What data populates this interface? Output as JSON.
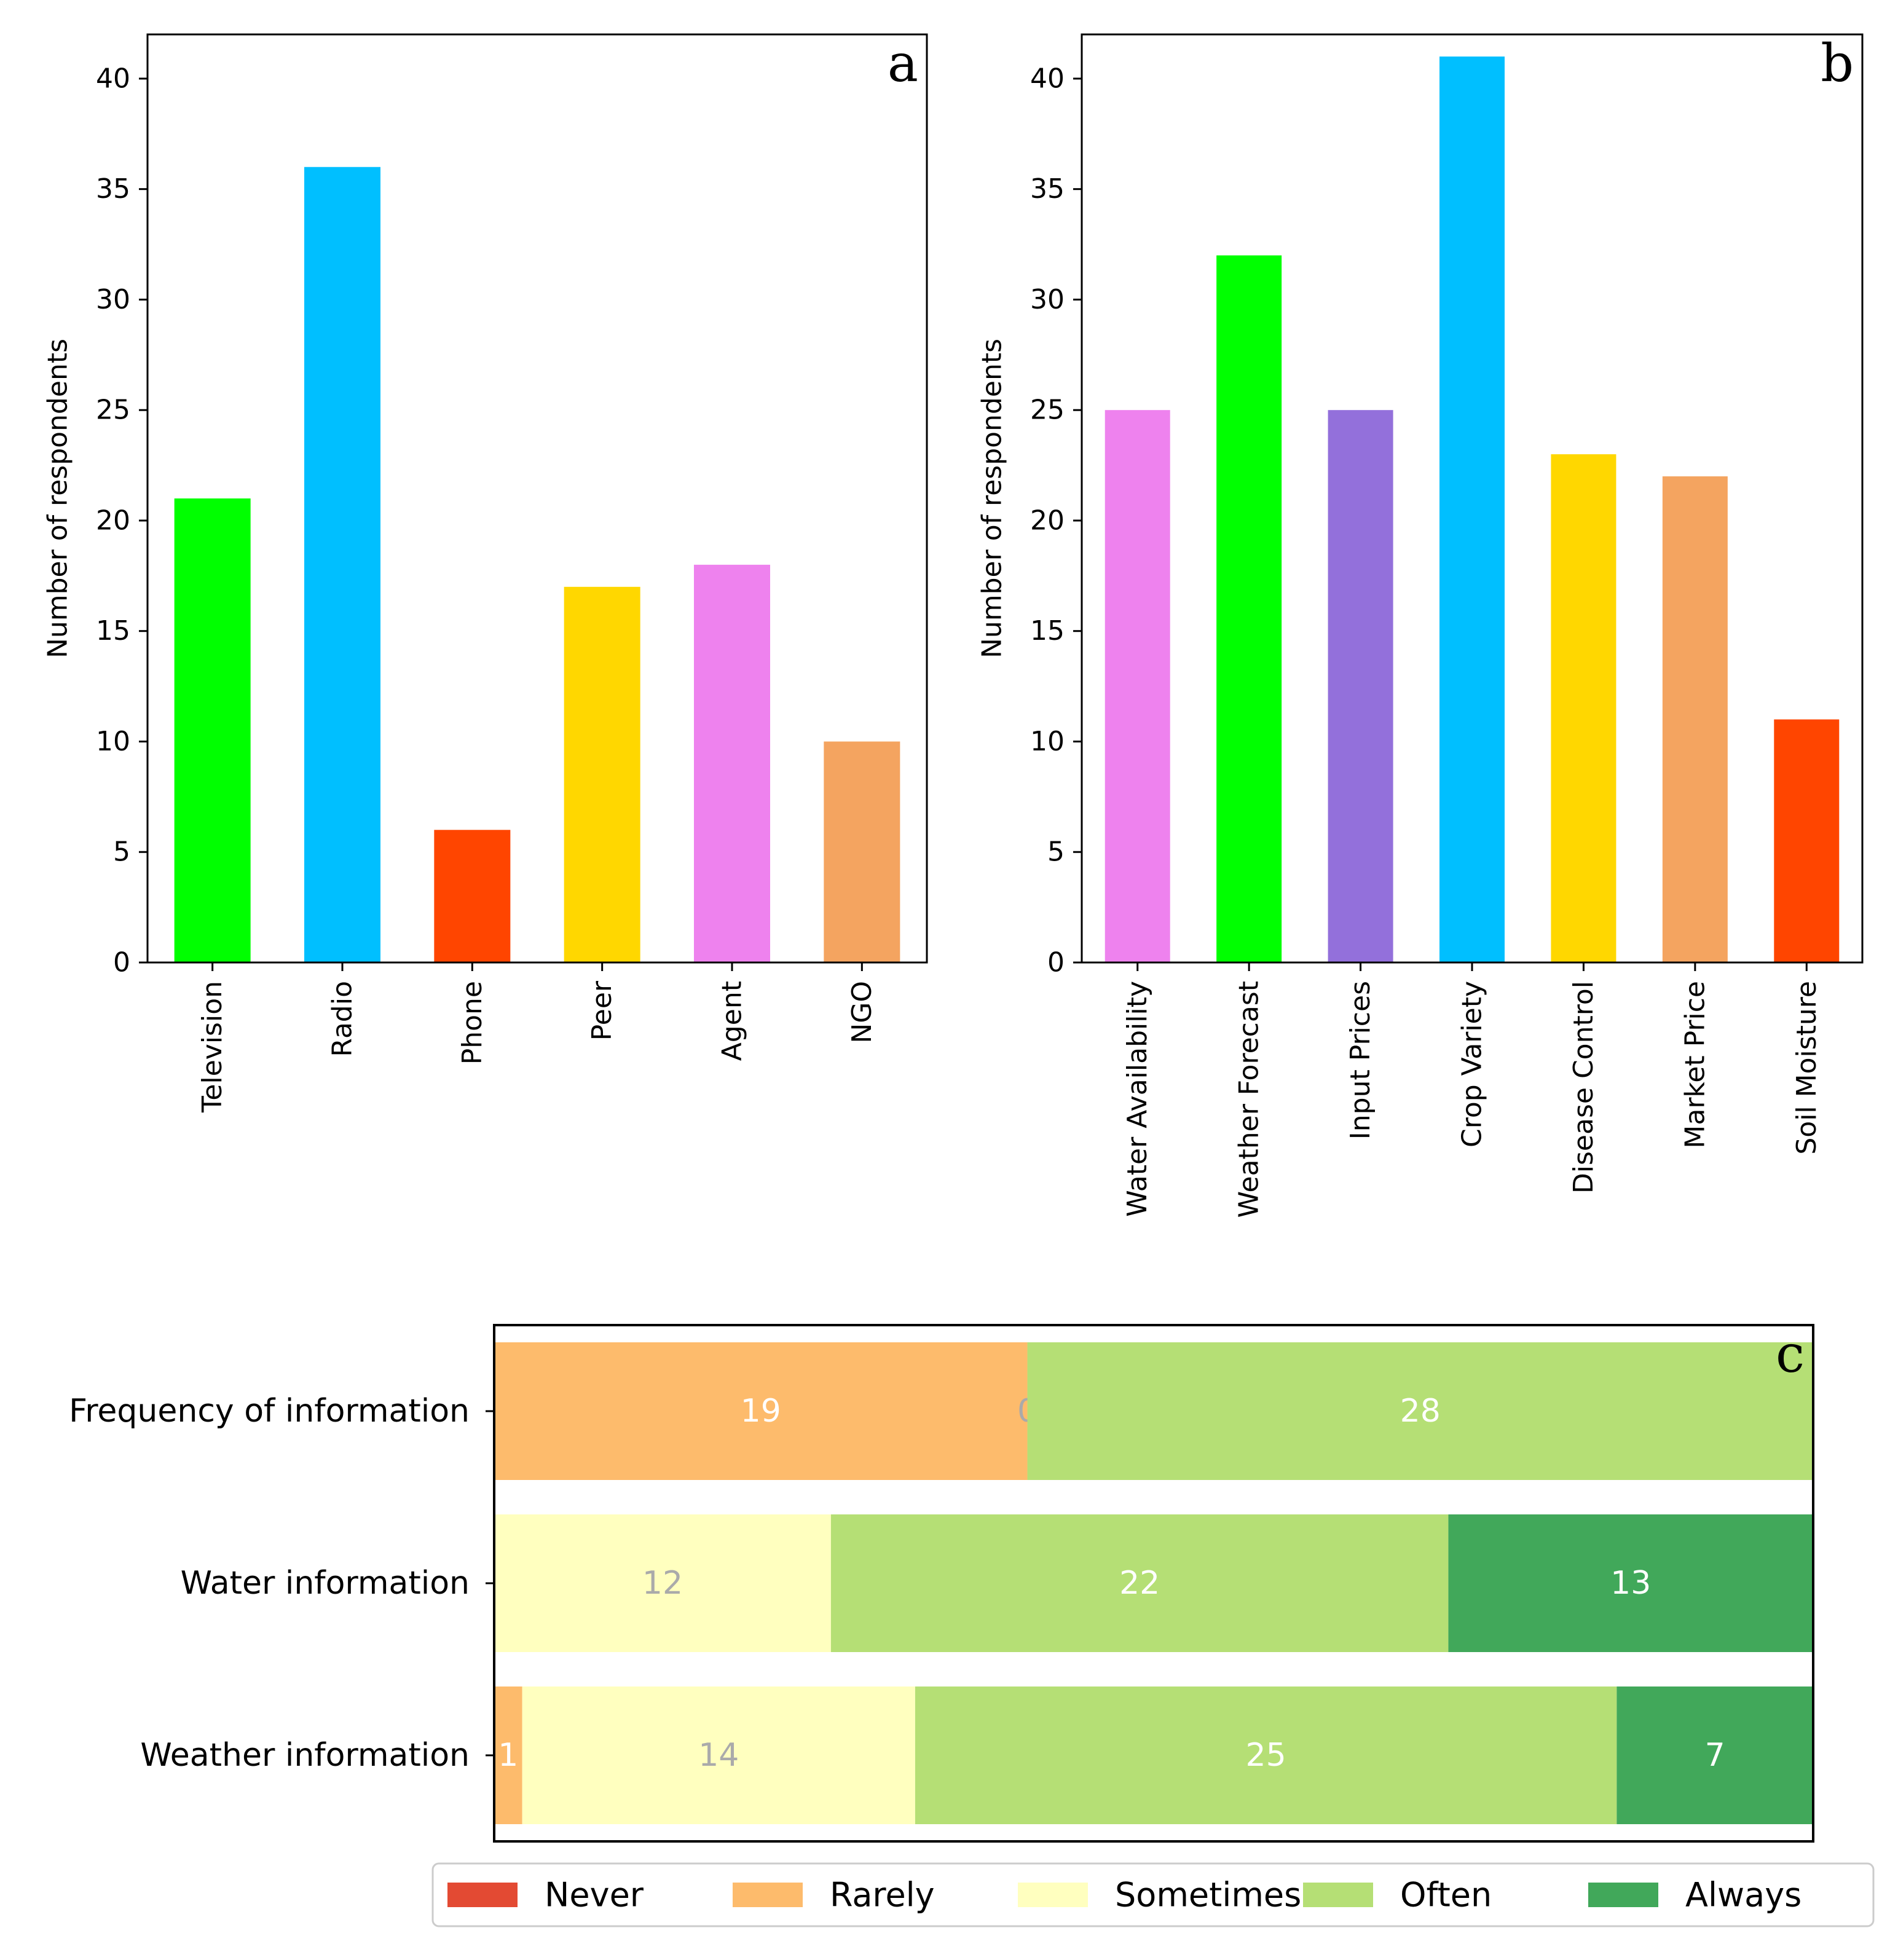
{
  "chart_data": [
    {
      "type": "bar",
      "panel_label": "a",
      "ylabel": "Number of respondents",
      "xlabel": "",
      "ylim": [
        0,
        42
      ],
      "yticks": [
        0,
        5,
        10,
        15,
        20,
        25,
        30,
        35,
        40
      ],
      "grid": false,
      "categories": [
        "Television",
        "Radio",
        "Phone",
        "Peer",
        "Agent",
        "NGO"
      ],
      "values": [
        21,
        36,
        6,
        17,
        18,
        10
      ],
      "colors": [
        "#00ff00",
        "#00bfff",
        "#ff4500",
        "#ffd700",
        "#ee82ee",
        "#f4a460"
      ]
    },
    {
      "type": "bar",
      "panel_label": "b",
      "ylabel": "Number of respondents",
      "xlabel": "",
      "ylim": [
        0,
        42
      ],
      "yticks": [
        0,
        5,
        10,
        15,
        20,
        25,
        30,
        35,
        40
      ],
      "grid": false,
      "categories": [
        "Water Availability",
        "Weather Forecast",
        "Input Prices",
        "Crop Variety",
        "Disease Control",
        "Market Price",
        "Soil Moisture"
      ],
      "values": [
        25,
        32,
        25,
        41,
        23,
        22,
        11
      ],
      "colors": [
        "#ee82ee",
        "#00ff00",
        "#9370db",
        "#00bfff",
        "#ffd700",
        "#f4a460",
        "#ff4500"
      ]
    },
    {
      "type": "bar",
      "orientation": "horizontal-stacked",
      "panel_label": "c",
      "xlim": [
        0,
        47
      ],
      "categories": [
        "Frequency of information",
        "Water information",
        "Weather information"
      ],
      "legend_position": "bottom",
      "series": [
        {
          "name": "Never",
          "color": "#e34a33",
          "label_color": "#ffffff",
          "values": [
            0,
            0,
            0
          ],
          "labels": [
            "",
            "",
            ""
          ]
        },
        {
          "name": "Rarely",
          "color": "#fdbb6c",
          "label_color": "#ffffff",
          "values": [
            19,
            0,
            1
          ],
          "labels": [
            "19",
            "",
            "1"
          ]
        },
        {
          "name": "Sometimes",
          "color": "#ffffbf",
          "label_color": "#aaaaaa",
          "values": [
            0,
            12,
            14
          ],
          "labels": [
            "0",
            "12",
            "14"
          ]
        },
        {
          "name": "Often",
          "color": "#b5df75",
          "label_color": "#ffffff",
          "values": [
            28,
            22,
            25
          ],
          "labels": [
            "28",
            "22",
            "25"
          ]
        },
        {
          "name": "Always",
          "color": "#41a85a",
          "label_color": "#ffffff",
          "values": [
            0,
            13,
            7
          ],
          "labels": [
            "",
            "13",
            "7"
          ]
        }
      ]
    }
  ]
}
